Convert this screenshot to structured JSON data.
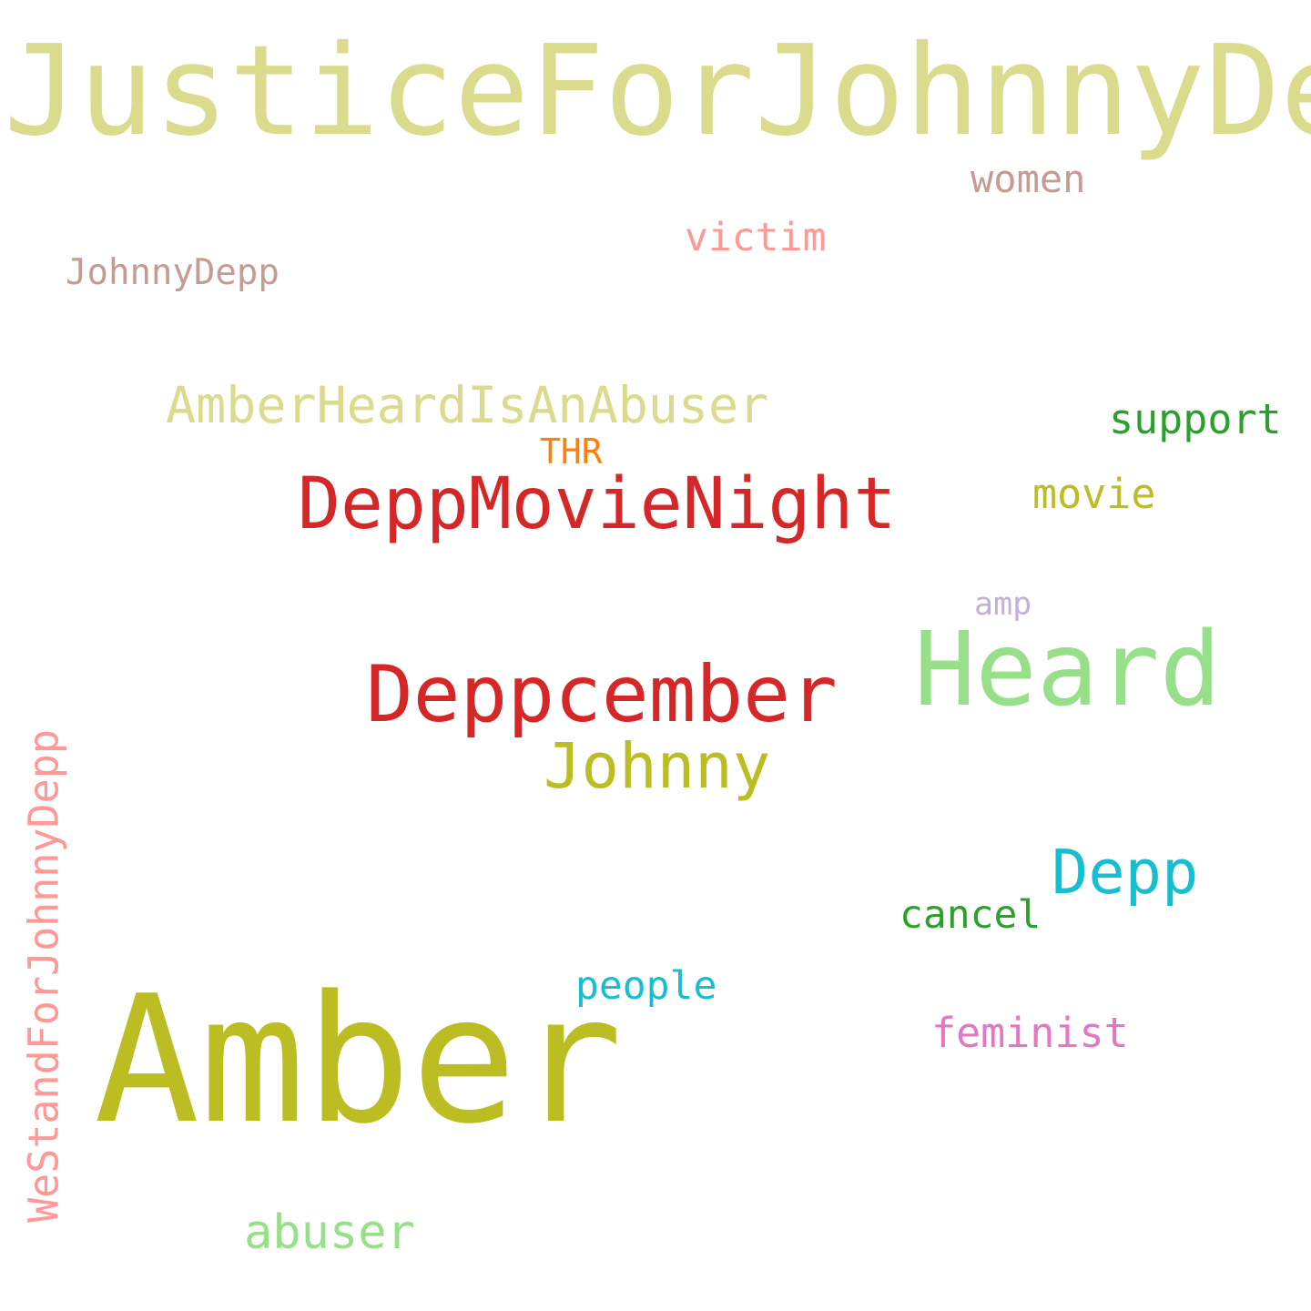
{
  "words": [
    {
      "text": "JusticeForJohnnyDepp",
      "color": "#dbdb8d",
      "orientation": "horizontal"
    },
    {
      "text": "women",
      "color": "#c49c94",
      "orientation": "horizontal"
    },
    {
      "text": "victim",
      "color": "#ff9896",
      "orientation": "horizontal"
    },
    {
      "text": "JohnnyDepp",
      "color": "#c49c94",
      "orientation": "horizontal"
    },
    {
      "text": "AmberHeardIsAnAbuser",
      "color": "#dbdb8d",
      "orientation": "horizontal"
    },
    {
      "text": "support",
      "color": "#2ca02c",
      "orientation": "horizontal"
    },
    {
      "text": "THR",
      "color": "#ff7f0e",
      "orientation": "horizontal"
    },
    {
      "text": "movie",
      "color": "#bcbd22",
      "orientation": "horizontal"
    },
    {
      "text": "DeppMovieNight",
      "color": "#d62728",
      "orientation": "horizontal"
    },
    {
      "text": "amp",
      "color": "#c5b0d5",
      "orientation": "horizontal"
    },
    {
      "text": "Heard",
      "color": "#98df8a",
      "orientation": "horizontal"
    },
    {
      "text": "Deppcember",
      "color": "#d62728",
      "orientation": "horizontal"
    },
    {
      "text": "Johnny",
      "color": "#bcbd22",
      "orientation": "horizontal"
    },
    {
      "text": "Depp",
      "color": "#17becf",
      "orientation": "horizontal"
    },
    {
      "text": "cancel",
      "color": "#2ca02c",
      "orientation": "horizontal"
    },
    {
      "text": "people",
      "color": "#17becf",
      "orientation": "horizontal"
    },
    {
      "text": "feminist",
      "color": "#e377c2",
      "orientation": "horizontal"
    },
    {
      "text": "Amber",
      "color": "#bcbd22",
      "orientation": "horizontal"
    },
    {
      "text": "abuser",
      "color": "#98df8a",
      "orientation": "horizontal"
    },
    {
      "text": "WeStandForJohnnyDepp",
      "color": "#ff9896",
      "orientation": "vertical"
    }
  ]
}
